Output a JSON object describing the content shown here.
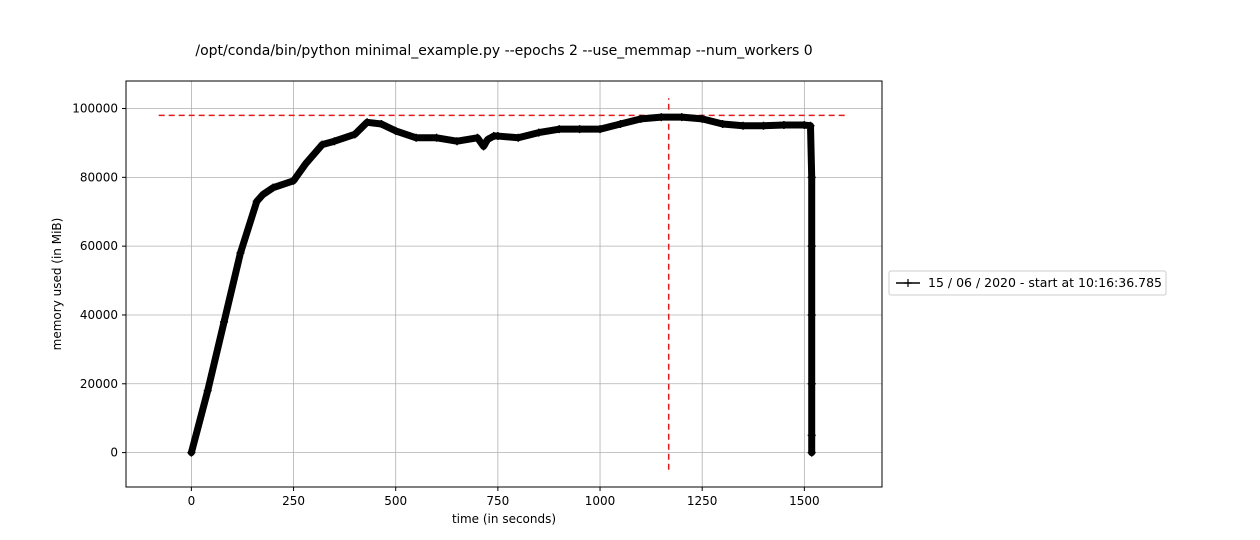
{
  "chart_data": {
    "type": "line",
    "title": "/opt/conda/bin/python minimal_example.py --epochs 2 --use_memmap --num_workers 0",
    "xlabel": "time (in seconds)",
    "ylabel": "memory used (in MiB)",
    "xlim": [
      -160,
      1690
    ],
    "ylim": [
      -10000,
      108000
    ],
    "xticks": [
      0,
      250,
      500,
      750,
      1000,
      1250,
      1500
    ],
    "xtick_labels": [
      "0",
      "250",
      "500",
      "750",
      "1000",
      "1250",
      "1500"
    ],
    "yticks": [
      0,
      20000,
      40000,
      60000,
      80000,
      100000
    ],
    "ytick_labels": [
      "0",
      "20000",
      "40000",
      "60000",
      "80000",
      "100000"
    ],
    "grid": true,
    "legend_position": "outside-right",
    "series": [
      {
        "name": "15 / 06 / 2020 - start at 10:16:36.785",
        "color": "#000000",
        "marker": "plus",
        "x": [
          0,
          40,
          80,
          120,
          160,
          175,
          200,
          250,
          280,
          320,
          350,
          400,
          430,
          465,
          500,
          550,
          600,
          650,
          700,
          715,
          725,
          740,
          750,
          800,
          850,
          900,
          950,
          1000,
          1050,
          1100,
          1150,
          1200,
          1250,
          1300,
          1350,
          1400,
          1450,
          1500,
          1515,
          1518,
          1518,
          1518,
          1518,
          1518,
          1518
        ],
        "values": [
          0,
          18000,
          38000,
          58000,
          73000,
          75000,
          77000,
          79000,
          84000,
          89500,
          90500,
          92500,
          96000,
          95500,
          93500,
          91500,
          91500,
          90500,
          91500,
          89000,
          91000,
          92000,
          92000,
          91500,
          93000,
          94000,
          94000,
          94000,
          95500,
          97000,
          97500,
          97500,
          97000,
          95500,
          95000,
          95000,
          95200,
          95200,
          95000,
          80000,
          60000,
          40000,
          20000,
          5000,
          0
        ]
      }
    ],
    "reference_lines": [
      {
        "orientation": "horizontal",
        "value": 98000,
        "from": -80,
        "to": 1600,
        "color": "#e41a1c",
        "style": "dashed"
      },
      {
        "orientation": "vertical",
        "value": 1168,
        "from": -5000,
        "to": 103000,
        "color": "#e41a1c",
        "style": "dashed"
      }
    ]
  }
}
